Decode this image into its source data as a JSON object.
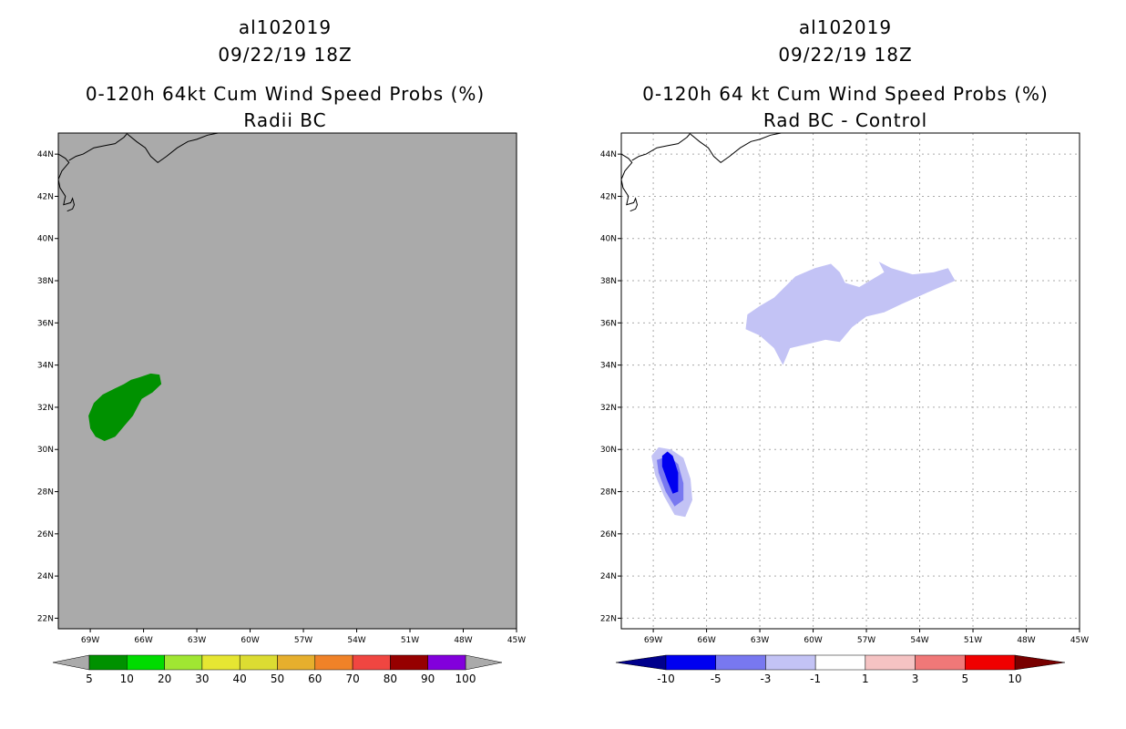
{
  "panels": [
    {
      "title_lines": [
        "al102019",
        "09/22/19 18Z",
        "0-120h 64kt Cum Wind Speed Probs (%)",
        "Radii BC"
      ],
      "chart_data": {
        "type": "heatmap",
        "map_background": "#aaaaaa",
        "x_ticks": [
          "69W",
          "66W",
          "63W",
          "60W",
          "57W",
          "54W",
          "51W",
          "48W",
          "45W"
        ],
        "y_ticks": [
          "44N",
          "42N",
          "40N",
          "38N",
          "36N",
          "34N",
          "32N",
          "30N",
          "28N",
          "26N",
          "24N",
          "22N"
        ],
        "xlim_deg_west": [
          70.8,
          45
        ],
        "ylim_deg_north": [
          21.5,
          45
        ],
        "grid": false,
        "contours": [
          {
            "level": "5-10",
            "color": "#009100",
            "lonlat": [
              [
                -66.3,
                33.4
              ],
              [
                -65.6,
                33.6
              ],
              [
                -65.1,
                33.55
              ],
              [
                -65.0,
                33.1
              ],
              [
                -65.5,
                32.7
              ],
              [
                -66.1,
                32.4
              ],
              [
                -66.6,
                31.6
              ],
              [
                -67.1,
                31.1
              ],
              [
                -67.6,
                30.6
              ],
              [
                -68.2,
                30.4
              ],
              [
                -68.7,
                30.6
              ],
              [
                -69.0,
                31.0
              ],
              [
                -69.1,
                31.6
              ],
              [
                -68.8,
                32.2
              ],
              [
                -68.3,
                32.6
              ],
              [
                -67.6,
                32.9
              ],
              [
                -67.1,
                33.1
              ],
              [
                -66.7,
                33.3
              ]
            ]
          }
        ],
        "colorbar": {
          "labels": [
            "5",
            "10",
            "20",
            "30",
            "40",
            "50",
            "60",
            "70",
            "80",
            "90",
            "100"
          ],
          "colors": [
            "#009100",
            "#00dc00",
            "#a0e632",
            "#e6e632",
            "#dcdc32",
            "#e6af2d",
            "#f08228",
            "#f04641",
            "#960000",
            "#8200dc"
          ],
          "end_color": "#aaaaaa"
        }
      }
    },
    {
      "title_lines": [
        "al102019",
        "09/22/19 18Z",
        "0-120h 64 kt Cum Wind Speed Probs (%)",
        "Rad BC - Control"
      ],
      "chart_data": {
        "type": "heatmap",
        "map_background": "#ffffff",
        "x_ticks": [
          "69W",
          "66W",
          "63W",
          "60W",
          "57W",
          "54W",
          "51W",
          "48W",
          "45W"
        ],
        "y_ticks": [
          "44N",
          "42N",
          "40N",
          "38N",
          "36N",
          "34N",
          "32N",
          "30N",
          "28N",
          "26N",
          "24N",
          "22N"
        ],
        "xlim_deg_west": [
          70.8,
          45
        ],
        "ylim_deg_north": [
          21.5,
          45
        ],
        "grid": true,
        "contours": [
          {
            "level": "-3 to -1",
            "color": "#c3c3f5",
            "lonlat": [
              [
                -61.0,
                38.2
              ],
              [
                -59.9,
                38.6
              ],
              [
                -59.0,
                38.8
              ],
              [
                -58.5,
                38.4
              ],
              [
                -58.2,
                37.9
              ],
              [
                -57.4,
                37.7
              ],
              [
                -56.6,
                38.1
              ],
              [
                -56.0,
                38.4
              ],
              [
                -56.3,
                38.9
              ],
              [
                -55.6,
                38.6
              ],
              [
                -54.4,
                38.3
              ],
              [
                -53.2,
                38.4
              ],
              [
                -52.4,
                38.6
              ],
              [
                -52.0,
                38.0
              ],
              [
                -53.4,
                37.5
              ],
              [
                -55.0,
                36.9
              ],
              [
                -56.0,
                36.5
              ],
              [
                -57.0,
                36.3
              ],
              [
                -57.8,
                35.8
              ],
              [
                -58.5,
                35.1
              ],
              [
                -59.3,
                35.2
              ],
              [
                -60.3,
                35.0
              ],
              [
                -61.3,
                34.8
              ],
              [
                -61.7,
                34.0
              ],
              [
                -62.2,
                34.8
              ],
              [
                -63.0,
                35.4
              ],
              [
                -63.8,
                35.7
              ],
              [
                -63.7,
                36.4
              ],
              [
                -63.0,
                36.8
              ],
              [
                -62.2,
                37.2
              ]
            ]
          },
          {
            "level": "-3 to -1",
            "color": "#c3c3f5",
            "lonlat": [
              [
                -68.0,
                30.0
              ],
              [
                -67.3,
                29.6
              ],
              [
                -66.9,
                28.6
              ],
              [
                -66.8,
                27.6
              ],
              [
                -67.2,
                26.8
              ],
              [
                -67.8,
                26.9
              ],
              [
                -68.4,
                27.8
              ],
              [
                -68.9,
                28.8
              ],
              [
                -69.1,
                29.7
              ],
              [
                -68.7,
                30.1
              ]
            ]
          },
          {
            "level": "-5 to -3",
            "color": "#7878f0",
            "lonlat": [
              [
                -68.1,
                29.7
              ],
              [
                -67.6,
                29.3
              ],
              [
                -67.3,
                28.4
              ],
              [
                -67.3,
                27.6
              ],
              [
                -67.8,
                27.3
              ],
              [
                -68.3,
                28.0
              ],
              [
                -68.7,
                28.9
              ],
              [
                -68.8,
                29.5
              ]
            ]
          },
          {
            "level": "-10 to -5",
            "color": "#0000f0",
            "lonlat": [
              [
                -68.2,
                29.9
              ],
              [
                -67.9,
                29.7
              ],
              [
                -67.6,
                28.9
              ],
              [
                -67.6,
                28.0
              ],
              [
                -67.9,
                27.9
              ],
              [
                -68.2,
                28.5
              ],
              [
                -68.5,
                29.2
              ],
              [
                -68.5,
                29.7
              ]
            ]
          }
        ],
        "colorbar": {
          "labels": [
            "-10",
            "-5",
            "-3",
            "-1",
            "1",
            "3",
            "5",
            "10"
          ],
          "colors": [
            "#0000f0",
            "#7878f0",
            "#c3c3f5",
            "#ffffff",
            "#f5c3c3",
            "#f07878",
            "#f00000"
          ],
          "left_color": "#00008c",
          "right_color": "#780000"
        }
      }
    }
  ]
}
